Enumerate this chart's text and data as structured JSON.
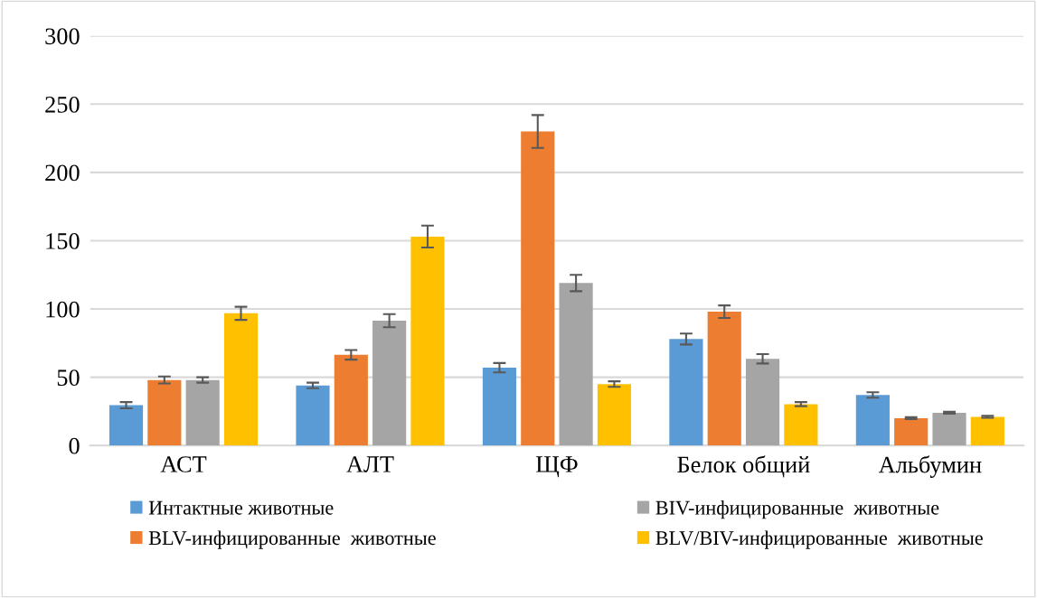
{
  "chart_data": {
    "type": "bar",
    "categories": [
      "АСТ",
      "АЛТ",
      "ЩФ",
      "Белок общий",
      "Альбумин"
    ],
    "series": [
      {
        "name": "Интактные животные",
        "color": "#5b9bd5",
        "values": [
          29.5,
          44,
          57,
          78,
          37
        ],
        "errors": [
          2.3,
          2,
          3.4,
          4,
          2
        ]
      },
      {
        "name": "BLV-инфицированные  животные",
        "color": "#ed7d31",
        "values": [
          48,
          66.4,
          230,
          98,
          20
        ],
        "errors": [
          2.6,
          3.5,
          12,
          4.6,
          0.7
        ]
      },
      {
        "name": "BIV-инфицированные  животные",
        "color": "#a5a5a5",
        "values": [
          48,
          91.4,
          119,
          63.5,
          24
        ],
        "errors": [
          2,
          4.8,
          6,
          3.4,
          0.7
        ]
      },
      {
        "name": "BLV/BIV-инфицированные  животные",
        "color": "#ffc000",
        "values": [
          96.8,
          153,
          45,
          30.3,
          21
        ],
        "errors": [
          4.8,
          8,
          2,
          1.5,
          0.7
        ]
      }
    ],
    "ylim": [
      0,
      300
    ],
    "yticks": [
      0,
      50,
      100,
      150,
      200,
      250,
      300
    ],
    "grid": "y",
    "legend": "bottom"
  }
}
